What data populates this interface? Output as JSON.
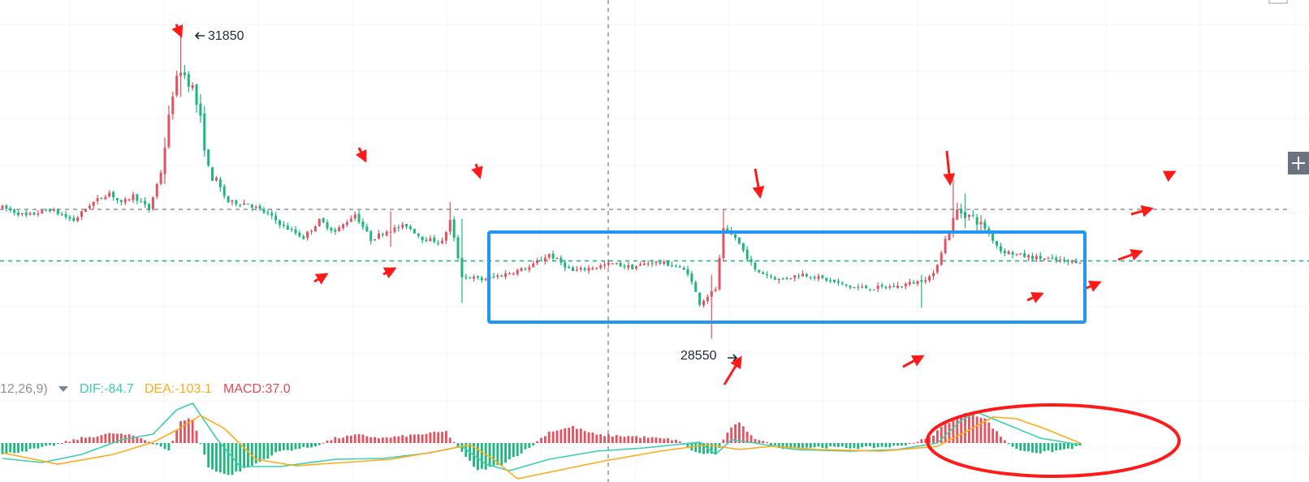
{
  "chart_data": {
    "type": "candlestick",
    "colors": {
      "up": "#e2535f",
      "down": "#1db67d",
      "box": "#2196f3",
      "annot": "#ff1a1a",
      "dif": "#39cfb0",
      "dea": "#ffab19",
      "macd": "#e84855",
      "dash_gray": "#888888",
      "dash_green": "#14a680",
      "macd_params": "#8a93a0"
    },
    "price_range": [
      28250,
      32150
    ],
    "price_annotations": {
      "high": 31850,
      "low": 28550
    },
    "high_label": "31850",
    "low_label": "28550",
    "horizontal_levels": {
      "resistance": 30000,
      "support": 29450
    },
    "consolidation_box": {
      "price_top": 29870,
      "price_bottom": 29160
    },
    "macd": {
      "params_label": "12,26,9)",
      "dif_label": "DIF:-84.7",
      "dea_label": "DEA:-103.1",
      "macd_label": "MACD:37.0"
    },
    "grid": true,
    "crosshair": true
  },
  "toolbar": {
    "plus_icon": "plus-icon"
  }
}
